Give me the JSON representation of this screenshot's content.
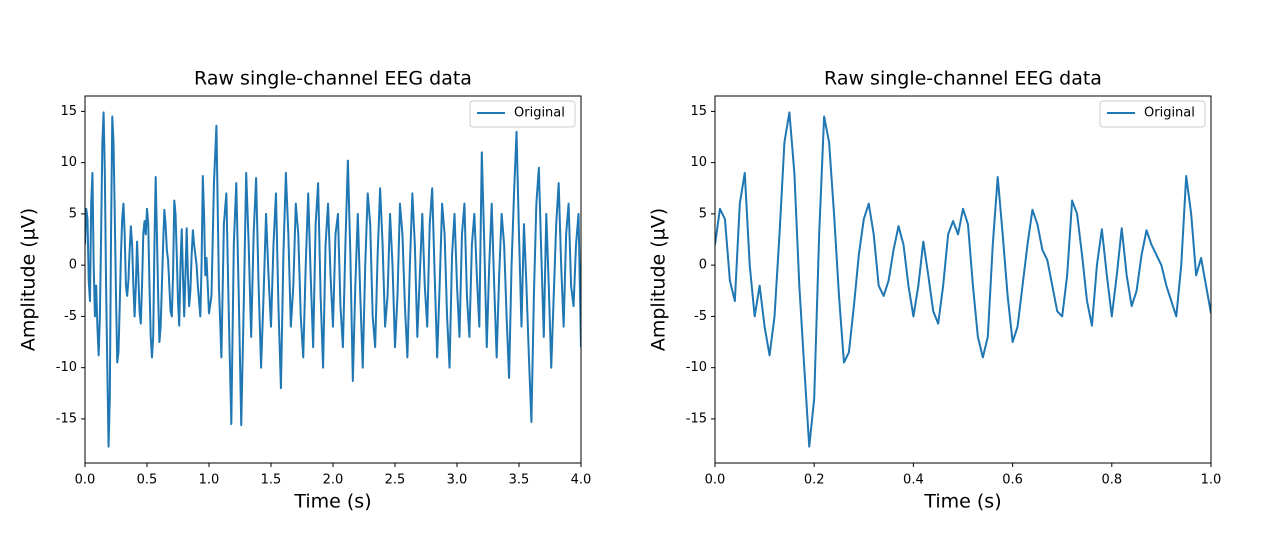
{
  "chart_data": [
    {
      "type": "line",
      "title": "Raw single-channel EEG data",
      "x_label": "Time (s)",
      "y_label": "Amplitude (µV)",
      "xlim": [
        0,
        4
      ],
      "ylim": [
        -19.3,
        16.5
      ],
      "xticks": [
        {
          "value": 0,
          "label": "0.0"
        },
        0.5,
        {
          "value": 1,
          "label": "1.0"
        },
        1.5,
        {
          "value": 2,
          "label": "2.0"
        },
        2.5,
        {
          "value": 3,
          "label": "3.0"
        },
        3.5,
        {
          "value": 4,
          "label": "4.0"
        }
      ],
      "yticks": [
        -15,
        -10,
        -5,
        0,
        5,
        10,
        15
      ],
      "legend": "upper right",
      "x": [
        0,
        0.01,
        0.02,
        0.03,
        0.04,
        0.05,
        0.06,
        0.07,
        0.08,
        0.09,
        0.1,
        0.11,
        0.12,
        0.13,
        0.14,
        0.15,
        0.16,
        0.17,
        0.18,
        0.19,
        0.2,
        0.21,
        0.22,
        0.23,
        0.24,
        0.25,
        0.26,
        0.27,
        0.28,
        0.29,
        0.3,
        0.31,
        0.32,
        0.33,
        0.34,
        0.35,
        0.36,
        0.37,
        0.38,
        0.39,
        0.4,
        0.41,
        0.42,
        0.43,
        0.44,
        0.45,
        0.46,
        0.47,
        0.48,
        0.49,
        0.5,
        0.51,
        0.52,
        0.53,
        0.54,
        0.55,
        0.56,
        0.57,
        0.58,
        0.59,
        0.6,
        0.61,
        0.62,
        0.63,
        0.64,
        0.65,
        0.66,
        0.67,
        0.68,
        0.69,
        0.7,
        0.71,
        0.72,
        0.73,
        0.74,
        0.75,
        0.76,
        0.77,
        0.78,
        0.79,
        0.8,
        0.81,
        0.82,
        0.83,
        0.84,
        0.85,
        0.86,
        0.87,
        0.88,
        0.89,
        0.9,
        0.91,
        0.92,
        0.93,
        0.94,
        0.95,
        0.96,
        0.97,
        0.98,
        0.99,
        1.0,
        1.02,
        1.04,
        1.06,
        1.08,
        1.1,
        1.12,
        1.14,
        1.16,
        1.18,
        1.2,
        1.22,
        1.24,
        1.26,
        1.28,
        1.3,
        1.32,
        1.34,
        1.36,
        1.38,
        1.4,
        1.42,
        1.44,
        1.46,
        1.48,
        1.5,
        1.52,
        1.54,
        1.56,
        1.58,
        1.6,
        1.62,
        1.64,
        1.66,
        1.68,
        1.7,
        1.72,
        1.74,
        1.76,
        1.78,
        1.8,
        1.82,
        1.84,
        1.86,
        1.88,
        1.9,
        1.92,
        1.94,
        1.96,
        1.98,
        2.0,
        2.02,
        2.04,
        2.06,
        2.08,
        2.1,
        2.12,
        2.14,
        2.16,
        2.18,
        2.2,
        2.22,
        2.24,
        2.26,
        2.28,
        2.3,
        2.32,
        2.34,
        2.36,
        2.38,
        2.4,
        2.42,
        2.44,
        2.46,
        2.48,
        2.5,
        2.52,
        2.54,
        2.56,
        2.58,
        2.6,
        2.62,
        2.64,
        2.66,
        2.68,
        2.7,
        2.72,
        2.74,
        2.76,
        2.78,
        2.8,
        2.82,
        2.84,
        2.86,
        2.88,
        2.9,
        2.92,
        2.94,
        2.96,
        2.98,
        3.0,
        3.02,
        3.04,
        3.06,
        3.08,
        3.1,
        3.12,
        3.14,
        3.16,
        3.18,
        3.2,
        3.22,
        3.24,
        3.26,
        3.28,
        3.3,
        3.32,
        3.34,
        3.36,
        3.38,
        3.4,
        3.42,
        3.44,
        3.46,
        3.48,
        3.5,
        3.52,
        3.54,
        3.56,
        3.58,
        3.6,
        3.62,
        3.64,
        3.66,
        3.68,
        3.7,
        3.72,
        3.74,
        3.76,
        3.78,
        3.8,
        3.82,
        3.84,
        3.86,
        3.88,
        3.9,
        3.92,
        3.94,
        3.96,
        3.98,
        4.0
      ],
      "series": [
        {
          "name": "Original",
          "color": "#1f77b4",
          "values": [
            2,
            5.5,
            4.5,
            -1.5,
            -3.5,
            6,
            9,
            0,
            -5,
            -2,
            -6,
            -8.8,
            -5,
            3,
            12,
            14.9,
            9,
            -2,
            -10,
            -17.7,
            -13,
            3,
            14.5,
            12,
            5,
            -3,
            -9.5,
            -8.5,
            -4,
            1,
            4.5,
            6,
            3,
            -2,
            -3,
            -1.5,
            1.5,
            3.8,
            2,
            -2,
            -5,
            -2,
            2.3,
            -1,
            -4.5,
            -5.7,
            -2,
            3,
            4.3,
            3,
            5.5,
            4,
            -2,
            -7,
            -9,
            -7,
            2,
            8.6,
            3,
            -3,
            -7.5,
            -6,
            -2,
            2,
            5.4,
            4,
            1.5,
            0.5,
            -2,
            -4.5,
            -5,
            -1,
            6.3,
            5,
            1,
            -3.5,
            -5.9,
            0,
            3.5,
            -1,
            -5,
            -1,
            3.6,
            -1,
            -4,
            -2.5,
            1,
            3.4,
            2,
            1,
            0,
            -2,
            -3.5,
            -5,
            0,
            8.7,
            5,
            -1,
            0.7,
            -2,
            -4.7,
            -3,
            8,
            13.6,
            -2,
            -9,
            4,
            7,
            -5,
            -15.5,
            2,
            8,
            -3,
            -15.6,
            -4,
            9,
            2,
            -7,
            3,
            8.5,
            -2,
            -10,
            -3,
            5,
            -1,
            -6,
            2,
            7,
            -4,
            -12,
            1,
            9,
            3,
            -6,
            -2,
            6,
            3,
            -5,
            -9,
            0,
            7,
            -1,
            -8,
            4,
            8,
            -3,
            -10,
            2,
            6,
            -1,
            -6,
            3,
            5,
            -4,
            -8,
            2,
            10.2,
            1,
            -11.3,
            -2,
            5,
            -3,
            -10,
            0,
            7,
            4,
            -5,
            -8,
            1,
            7.5,
            2,
            -6,
            -3,
            5,
            0,
            -8,
            -3,
            6,
            3,
            -4,
            -9,
            0,
            7,
            2,
            -7,
            -1,
            5,
            -2,
            -6,
            4,
            7.5,
            -1,
            -9,
            -2,
            6,
            3,
            -5,
            -10,
            1,
            5,
            -2,
            -7,
            3,
            6,
            -3,
            -7,
            2,
            5,
            -1,
            -6,
            11,
            2,
            -8,
            0,
            6,
            -2,
            -9,
            -1,
            5,
            2,
            -5,
            -11,
            0,
            7,
            13,
            3,
            -6,
            4,
            -2,
            -9,
            -15.3,
            -3,
            6,
            9.5,
            1,
            -7,
            5,
            -2,
            -10,
            -3,
            4,
            8,
            0,
            -6,
            3,
            6,
            -2,
            -4,
            2,
            5,
            -8
          ]
        }
      ]
    },
    {
      "type": "line",
      "title": "Raw single-channel EEG data",
      "x_label": "Time (s)",
      "y_label": "Amplitude (µV)",
      "xlim": [
        0,
        1
      ],
      "ylim": [
        -19.3,
        16.5
      ],
      "xticks": [
        {
          "value": 0,
          "label": "0.0"
        },
        0.2,
        0.4,
        0.6,
        0.8,
        {
          "value": 1,
          "label": "1.0"
        }
      ],
      "yticks": [
        -15,
        -10,
        -5,
        0,
        5,
        10,
        15
      ],
      "legend": "upper right",
      "x": [
        0,
        0.01,
        0.02,
        0.03,
        0.04,
        0.05,
        0.06,
        0.07,
        0.08,
        0.09,
        0.1,
        0.11,
        0.12,
        0.13,
        0.14,
        0.15,
        0.16,
        0.17,
        0.18,
        0.19,
        0.2,
        0.21,
        0.22,
        0.23,
        0.24,
        0.25,
        0.26,
        0.27,
        0.28,
        0.29,
        0.3,
        0.31,
        0.32,
        0.33,
        0.34,
        0.35,
        0.36,
        0.37,
        0.38,
        0.39,
        0.4,
        0.41,
        0.42,
        0.43,
        0.44,
        0.45,
        0.46,
        0.47,
        0.48,
        0.49,
        0.5,
        0.51,
        0.52,
        0.53,
        0.54,
        0.55,
        0.56,
        0.57,
        0.58,
        0.59,
        0.6,
        0.61,
        0.62,
        0.63,
        0.64,
        0.65,
        0.66,
        0.67,
        0.68,
        0.69,
        0.7,
        0.71,
        0.72,
        0.73,
        0.74,
        0.75,
        0.76,
        0.77,
        0.78,
        0.79,
        0.8,
        0.81,
        0.82,
        0.83,
        0.84,
        0.85,
        0.86,
        0.87,
        0.88,
        0.89,
        0.9,
        0.91,
        0.92,
        0.93,
        0.94,
        0.95,
        0.96,
        0.97,
        0.98,
        0.99,
        1.0
      ],
      "series": [
        {
          "name": "Original",
          "color": "#1f77b4",
          "values": [
            2,
            5.5,
            4.5,
            -1.5,
            -3.5,
            6,
            9,
            0,
            -5,
            -2,
            -6,
            -8.8,
            -5,
            3,
            12,
            14.9,
            9,
            -2,
            -10,
            -17.7,
            -13,
            3,
            14.5,
            12,
            5,
            -3,
            -9.5,
            -8.5,
            -4,
            1,
            4.5,
            6,
            3,
            -2,
            -3,
            -1.5,
            1.5,
            3.8,
            2,
            -2,
            -5,
            -2,
            2.3,
            -1,
            -4.5,
            -5.7,
            -2,
            3,
            4.3,
            3,
            5.5,
            4,
            -2,
            -7,
            -9,
            -7,
            2,
            8.6,
            3,
            -3,
            -7.5,
            -6,
            -2,
            2,
            5.4,
            4,
            1.5,
            0.5,
            -2,
            -4.5,
            -5,
            -1,
            6.3,
            5,
            1,
            -3.5,
            -5.9,
            0,
            3.5,
            -1,
            -5,
            -1,
            3.6,
            -1,
            -4,
            -2.5,
            1,
            3.4,
            2,
            1,
            0,
            -2,
            -3.5,
            -5,
            0,
            8.7,
            5,
            -1,
            0.7,
            -2,
            -4.7
          ]
        }
      ]
    }
  ]
}
